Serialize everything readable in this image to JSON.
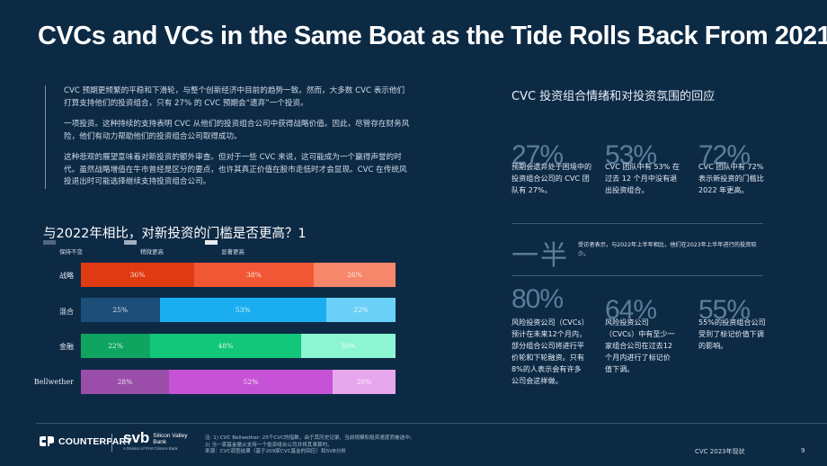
{
  "page": {
    "title": "CVCs and VCs in the Same Boat as the Tide Rolls Back From 2021",
    "intro_paragraphs": [
      "CVC 预期更频繁的平稳和下滑轮，与整个创新经济中目前的趋势一致。然而，大多数 CVC 表示他们打算支持他们的投资组合，只有 27% 的 CVC 预期会“遗弃”一个投资。",
      "一项投资。这种持续的支持表明 CVC 从他们的投资组合公司中获得战略价值。因此，尽管存在财务风险，他们有动力帮助他们的投资组合公司取得成功。",
      "这种悲观的展望意味着对新投资的额外审查。但对于一些 CVC 来说，这可能成为一个赢得声誉的时代。虽然战略增值在牛市曾经是区分的要点，也许其真正价值在股市走低时才会显现。CVC 在传统风投退出时可能选择继续支持投资组合公司。"
    ]
  },
  "chart": {
    "question_title": "与2022年相比，对新投资的门槛是否更高？1",
    "legend": [
      {
        "label": "保持不变",
        "color": "#51677d"
      },
      {
        "label": "稍微更高",
        "color": "#9fb0c0"
      },
      {
        "label": "显著更高",
        "color": "#e6ecf2"
      }
    ]
  },
  "chart_data": {
    "type": "bar",
    "orientation": "horizontal",
    "stacked": true,
    "categories": [
      "战略",
      "混合",
      "金融",
      "Bellwether"
    ],
    "series": [
      {
        "name": "保持不变",
        "values": [
          36,
          25,
          22,
          28
        ],
        "labels": [
          "36%",
          "25%",
          "22%",
          "28%"
        ]
      },
      {
        "name": "稍微更高",
        "values": [
          38,
          53,
          48,
          52
        ],
        "labels": [
          "38%",
          "53%",
          "48%",
          "52%"
        ]
      },
      {
        "name": "显著更高",
        "values": [
          26,
          22,
          30,
          20
        ],
        "labels": [
          "26%",
          "22%",
          "30%",
          "20%"
        ]
      }
    ],
    "row_colors": [
      [
        "#e03a12",
        "#f25735",
        "#f6876a"
      ],
      [
        "#1d4e79",
        "#1aaef0",
        "#6bd0f7"
      ],
      [
        "#0fa560",
        "#12c779",
        "#8cf5d2"
      ],
      [
        "#9a4eaa",
        "#c653d5",
        "#e7a7ec"
      ]
    ],
    "xlim": [
      0,
      100
    ]
  },
  "right_panel": {
    "title": "CVC 投资组合情绪和对投资氛围的回应",
    "stats_top": [
      {
        "big": "27%",
        "text": "预期会遗弃处于困境中的投资组合公司的 CVC 团队有 27%。"
      },
      {
        "big": "53%",
        "text": "CVC 团队中有 53% 在过去 12 个月中没有退出投资组合。"
      },
      {
        "big": "72%",
        "text": "CVC 团队中有 72% 表示新投资的门槛比 2022 年更高。"
      }
    ],
    "half": {
      "big": "一半",
      "text": "受访者表示，与2022年上半年相比，他们在2023年上半年进行的投资较少。"
    },
    "stats_bottom": [
      {
        "big": "80%",
        "text": "风险投资公司（CVCs）预计在未来12个月内，部分组合公司将进行平价轮和下轮融资。只有8%的人表示会有许多公司会这样做。"
      },
      {
        "big": "64%",
        "text": "风险投资公司（CVCs）中有至少一家组合公司在过去12个月内进行了标记价值下调。"
      },
      {
        "big": "55%",
        "text": "55%的投资组合公司受到了标记价值下调的影响。"
      }
    ]
  },
  "footer": {
    "counterpart": "COUNTERPART",
    "svb_main": "svb",
    "svb_sub1": "Silicon Valley",
    "svb_sub2": "Bank",
    "svb_tag": "A Division of First Citizens Bank",
    "notes": [
      "注: 1) CVC Bellwether: 25个CVC的指数，由于其历史记录、当前规模和投资速度而被选中。",
      "2) 当一家基金撤止支持一个投资组合公司并将其清算时。",
      "来源：CVC调查结果（基于209家CVC基金的回应）和SVB分析"
    ],
    "report": "CVC 2023年现状",
    "page": "9"
  }
}
